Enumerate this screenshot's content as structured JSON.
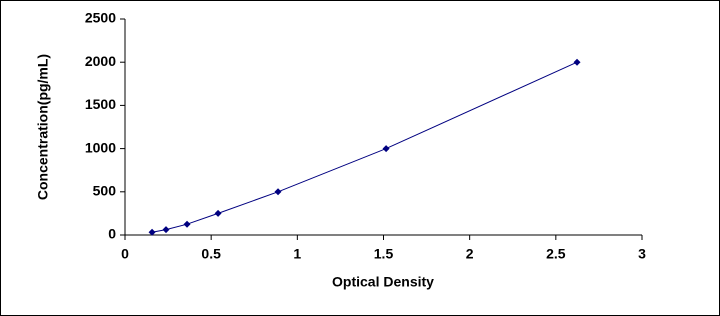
{
  "chart_data": {
    "type": "scatter",
    "x_label": "Optical Density",
    "y_label": "Concentration(pg/mL)",
    "x": [
      0.157,
      0.238,
      0.36,
      0.54,
      0.888,
      1.515,
      2.623
    ],
    "values": [
      31.25,
      62.5,
      125,
      250,
      500,
      1000,
      2000
    ],
    "color": "#000080",
    "line": true,
    "xlim": [
      0,
      3
    ],
    "xticks": [
      0,
      0.5,
      1,
      1.5,
      2,
      2.5,
      3
    ],
    "ylim": [
      0,
      2500
    ],
    "yticks": [
      0,
      500,
      1000,
      1500,
      2000,
      2500
    ],
    "grid": false
  }
}
